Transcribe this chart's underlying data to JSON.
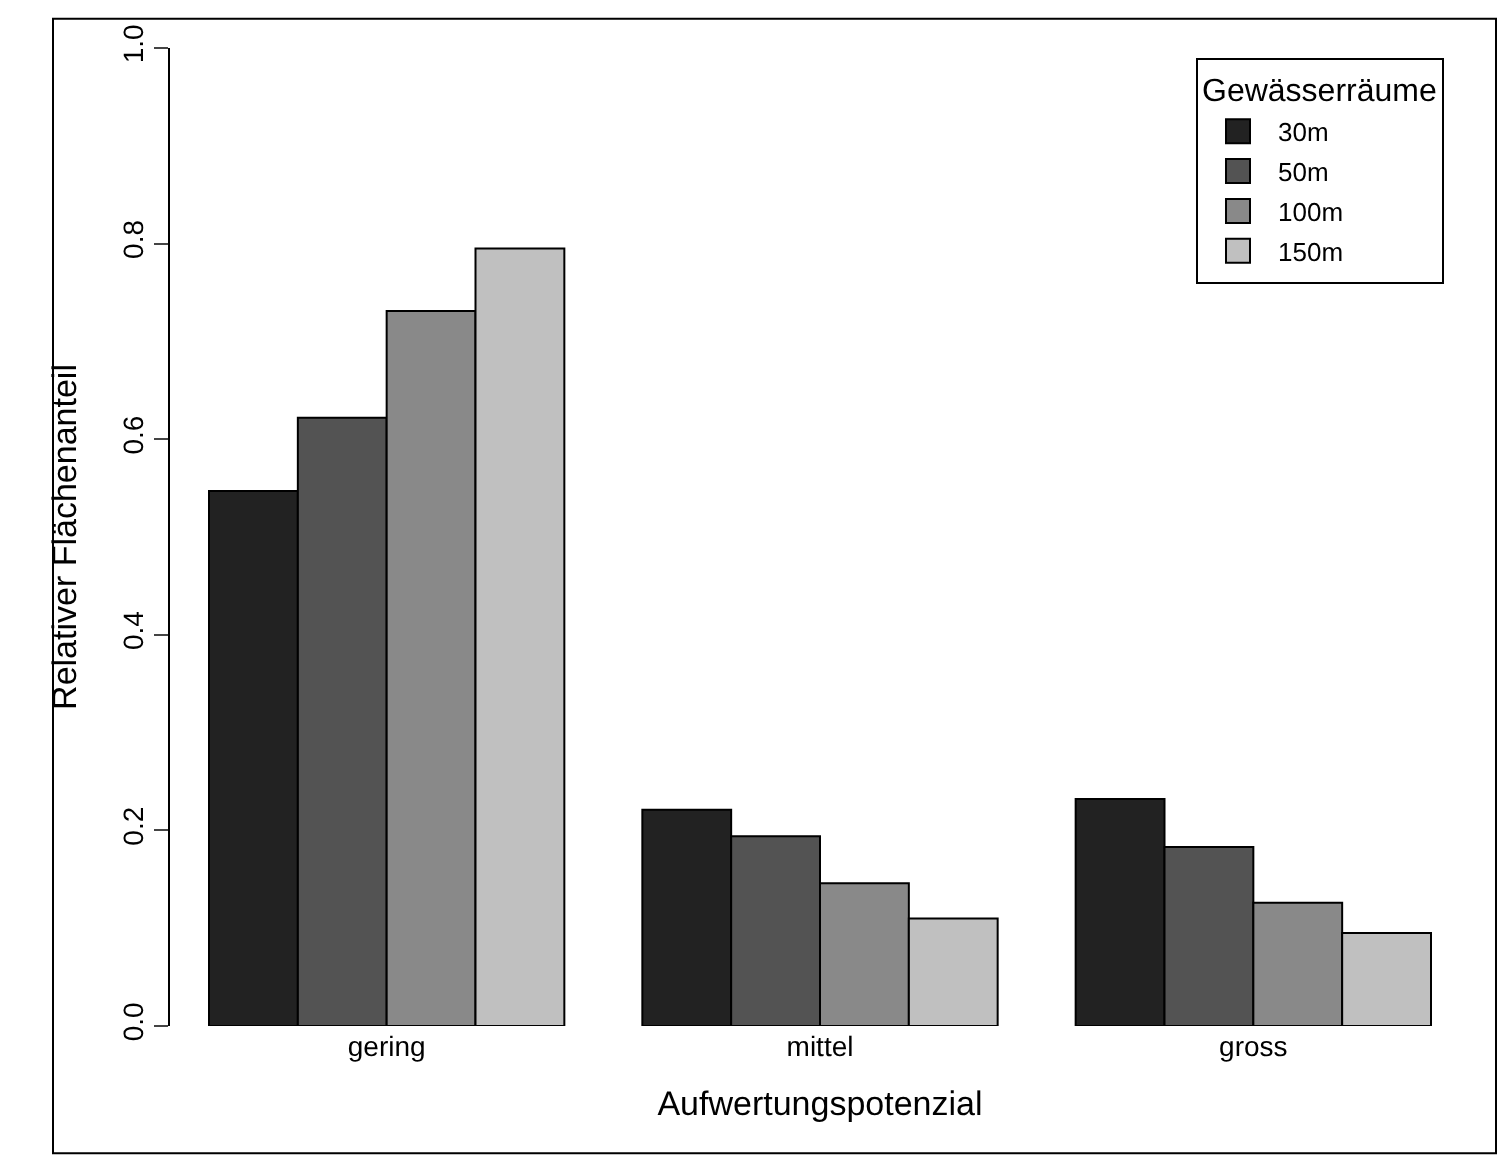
{
  "chart_data": {
    "type": "bar",
    "xlabel": "Aufwertungspotenzial",
    "ylabel": "Relativer Flächenanteil",
    "legend_title": "Gewässerräume",
    "categories": [
      "gering",
      "mittel",
      "gross"
    ],
    "series": [
      {
        "name": "30m",
        "color": "#222222",
        "values": [
          0.547,
          0.221,
          0.232
        ]
      },
      {
        "name": "50m",
        "color": "#535353",
        "values": [
          0.622,
          0.194,
          0.183
        ]
      },
      {
        "name": "100m",
        "color": "#898989",
        "values": [
          0.731,
          0.146,
          0.126
        ]
      },
      {
        "name": "150m",
        "color": "#c0c0c0",
        "values": [
          0.795,
          0.11,
          0.095
        ]
      }
    ],
    "ylim": [
      0,
      1
    ],
    "yticks": [
      {
        "value": 0,
        "label": "0.0"
      },
      {
        "value": 0.2,
        "label": "0.2"
      },
      {
        "value": 0.4,
        "label": "0.4"
      },
      {
        "value": 0.6,
        "label": "0.6"
      },
      {
        "value": 0.8,
        "label": "0.8"
      },
      {
        "value": 1,
        "label": "1.0"
      }
    ],
    "legend": "top right"
  }
}
